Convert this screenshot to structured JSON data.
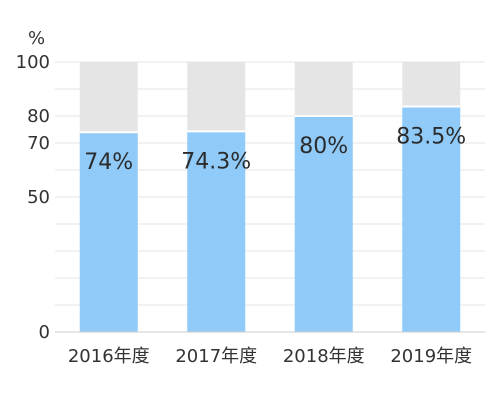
{
  "chart_data": {
    "type": "bar",
    "stacked_to_100": true,
    "unit": "%",
    "categories": [
      "2016年度",
      "2017年度",
      "2018年度",
      "2019年度"
    ],
    "values": [
      74,
      74.3,
      80,
      83.5
    ],
    "value_labels": [
      "74%",
      "74.3%",
      "80%",
      "83.5%"
    ],
    "ylim": [
      0,
      100
    ],
    "yticks": [
      0,
      50,
      70,
      80,
      100
    ],
    "grid": true,
    "colors": {
      "value": "#8fcaf9",
      "remainder": "#e5e5e5",
      "grid": "#e6e6e6",
      "axis": "#cccccc"
    }
  }
}
